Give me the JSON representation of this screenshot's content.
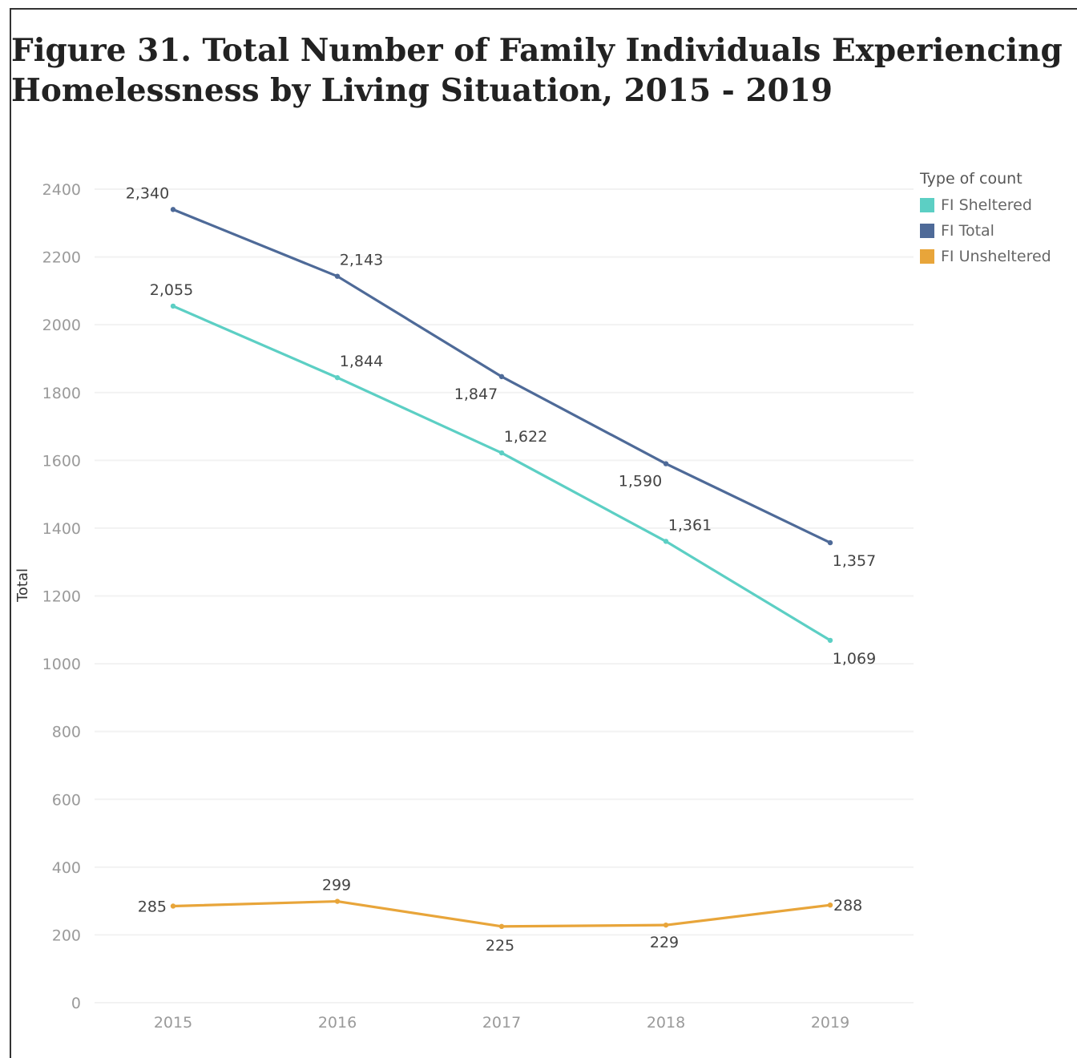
{
  "chart_data": {
    "type": "line",
    "title": "Figure 31. Total Number of Family Individuals Experiencing Homelessness by Living Situation, 2015 - 2019",
    "ylabel": "Total",
    "xlabel": "",
    "x": [
      "2015",
      "2016",
      "2017",
      "2018",
      "2019"
    ],
    "ylim": [
      0,
      2400
    ],
    "yticks": [
      0,
      200,
      400,
      600,
      800,
      1000,
      1200,
      1400,
      1600,
      1800,
      2000,
      2200,
      2400
    ],
    "grid": true,
    "legend_title": "Type of count",
    "legend_position": "top-right",
    "series": [
      {
        "name": "FI Sheltered",
        "color": "#5ccfc4",
        "values": [
          2055,
          1844,
          1622,
          1361,
          1069
        ],
        "labels": [
          "2,055",
          "1,844",
          "1,622",
          "1,361",
          "1,069"
        ]
      },
      {
        "name": "FI Total",
        "color": "#4e6a98",
        "values": [
          2340,
          2143,
          1847,
          1590,
          1357
        ],
        "labels": [
          "2,340",
          "2,143",
          "1,847",
          "1,590",
          "1,357"
        ]
      },
      {
        "name": "FI Unsheltered",
        "color": "#e8a53a",
        "values": [
          285,
          299,
          225,
          229,
          288
        ],
        "labels": [
          "285",
          "299",
          "225",
          "229",
          "288"
        ]
      }
    ]
  }
}
